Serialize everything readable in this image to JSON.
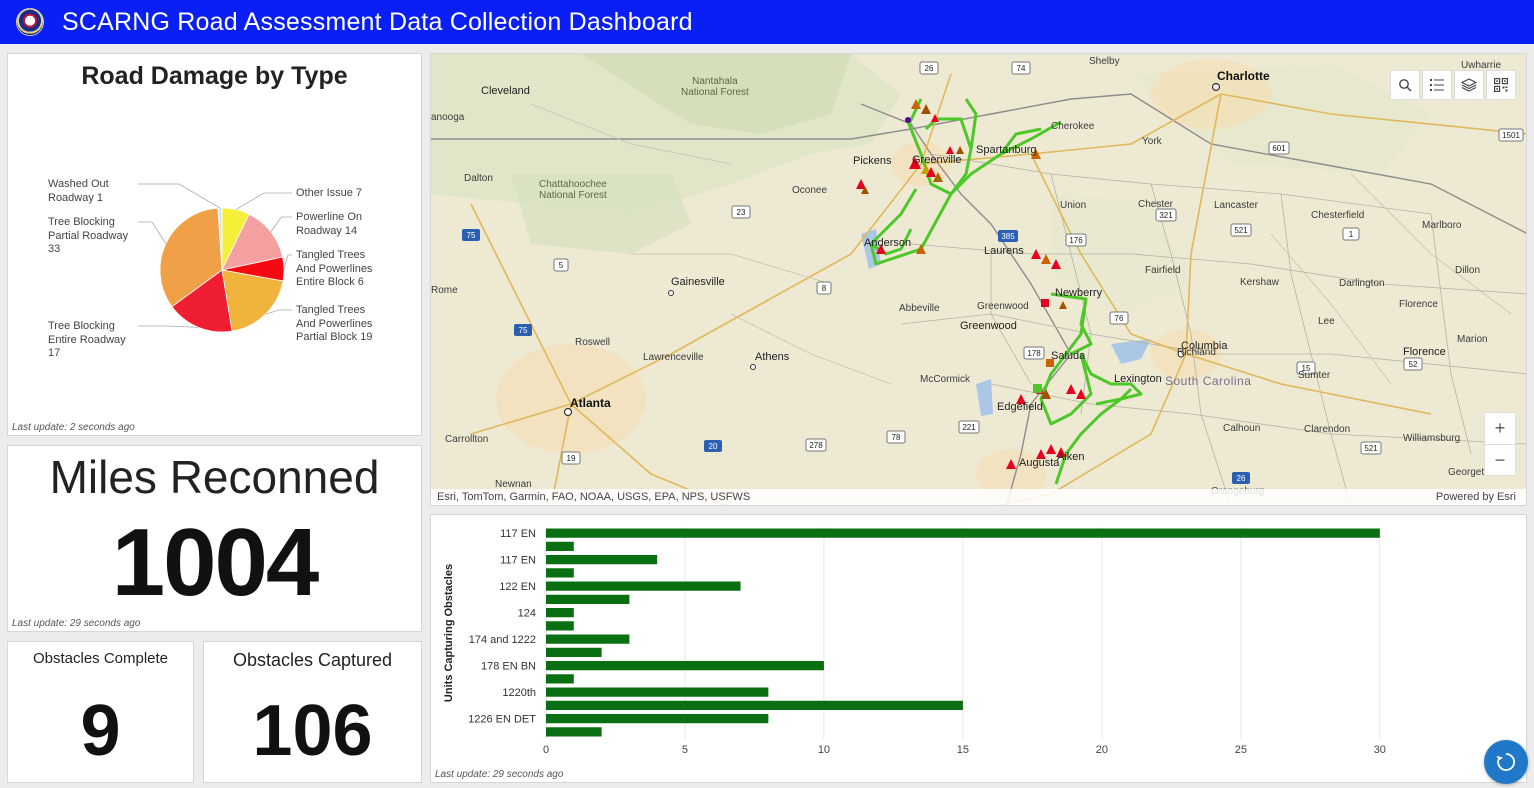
{
  "header": {
    "title": "SCARNG Road Assessment Data Collection Dashboard"
  },
  "pie_panel": {
    "last_update": "Last update: 2 seconds ago"
  },
  "miles": {
    "title": "Miles Reconned",
    "value": "1004",
    "last_update": "Last update: 29 seconds ago"
  },
  "obstacles_complete": {
    "title": "Obstacles Complete",
    "value": "9"
  },
  "obstacles_captured": {
    "title": "Obstacles Captured",
    "value": "106"
  },
  "map": {
    "attribution": "Esri, TomTom, Garmin, FAO, NOAA, USGS, EPA, NPS, USFWS",
    "powered_by": "Powered by Esri",
    "zoom_in": "+",
    "zoom_out": "−",
    "tools": [
      "search-icon",
      "legend-icon",
      "layers-icon",
      "qr-code-icon"
    ],
    "labels": {
      "cleveland": "Cleveland",
      "nantahala": "Nantahala\nNational Forest",
      "chattanooga": "anooga",
      "dalton": "Dalton",
      "chattahoochee": "Chattahoochee\nNational Forest",
      "gainesville": "Gainesville",
      "rome": "Rome",
      "roswell": "Roswell",
      "lawrenceville": "Lawrenceville",
      "athens": "Athens",
      "atlanta": "Atlanta",
      "carrollton": "Carrollton",
      "newnan": "Newnan",
      "shelby": "Shelby",
      "charlotte": "Charlotte",
      "york": "York",
      "pickens": "Pickens",
      "greenville": "Greenville",
      "spartanburg": "Spartanburg",
      "cherokee": "Cherokee",
      "oconee": "Oconee",
      "anderson": "Anderson",
      "union": "Union",
      "chester": "Chester",
      "lancaster": "Lancaster",
      "chesterfield": "Chesterfield",
      "marlboro": "Marlboro",
      "laurens": "Laurens",
      "fairfield": "Fairfield",
      "kershaw": "Kershaw",
      "darlington": "Darlington",
      "dillon": "Dillon",
      "abbeville": "Abbeville",
      "greenwood1": "Greenwood",
      "greenwood2": "Greenwood",
      "newberry": "Newberry",
      "lee": "Lee",
      "florence1": "Florence",
      "saluda": "Saluda",
      "columbia": "Columbia",
      "richland": "Richland",
      "florence2": "Florence",
      "marion": "Marion",
      "mccormick": "McCormick",
      "lexington": "Lexington",
      "south_carolina": "South Carolina",
      "sumter": "Sumter",
      "edgefield": "Edgefield",
      "calhoun": "Calhoun",
      "clarendon": "Clarendon",
      "williamsburg": "Williamsburg",
      "augusta": "Augusta",
      "aiken": "Aiken",
      "georgetown": "Georgetown",
      "orangeburg": "Orangeburg",
      "uwharrie": "Uwharrie",
      "nat": "Nat"
    },
    "route_shields": [
      "26",
      "74",
      "601",
      "23",
      "385",
      "176",
      "321",
      "521",
      "1",
      "75",
      "5",
      "8",
      "76",
      "15",
      "52",
      "178",
      "521",
      "221",
      "78",
      "278",
      "20",
      "19",
      "26",
      "1501"
    ]
  },
  "bar_chart": {
    "last_update": "Last update: 29 seconds ago"
  },
  "chart_data": [
    {
      "type": "pie",
      "title": "Road Damage by Type",
      "slices": [
        {
          "label": "Other Issue",
          "value": 7,
          "color": "#f5ef3a"
        },
        {
          "label": "Powerline On Roadway",
          "value": 14,
          "color": "#f5a0a0"
        },
        {
          "label": "Tangled Trees And Powerlines Entire Block",
          "value": 6,
          "color": "#f50a14"
        },
        {
          "label": "Tangled Trees And Powerlines Partial Block",
          "value": 19,
          "color": "#f0b43c"
        },
        {
          "label": "Tree Blocking Entire Roadway",
          "value": 17,
          "color": "#f01e32"
        },
        {
          "label": "Tree Blocking Partial Roadway",
          "value": 33,
          "color": "#f0a046"
        },
        {
          "label": "Washed Out Roadway",
          "value": 1,
          "color": "#cfe8f5"
        }
      ]
    },
    {
      "type": "bar",
      "orientation": "horizontal",
      "ylabel": "Units Capturing Obstacles",
      "categories": [
        "117 EN",
        "",
        "117 EN",
        "",
        "122 EN",
        "",
        "124",
        "",
        "174 and 1222",
        "",
        "178 EN BN",
        "",
        "1220th",
        "",
        "1226 EN DET",
        ""
      ],
      "values": [
        30,
        1,
        4,
        1,
        7,
        3,
        1,
        1,
        3,
        2,
        10,
        1,
        8,
        15,
        8,
        2
      ],
      "xticks": [
        0,
        5,
        10,
        15,
        20,
        25,
        30
      ],
      "xlim": [
        0,
        34
      ],
      "grid": true,
      "color": "#0a6e12"
    }
  ]
}
